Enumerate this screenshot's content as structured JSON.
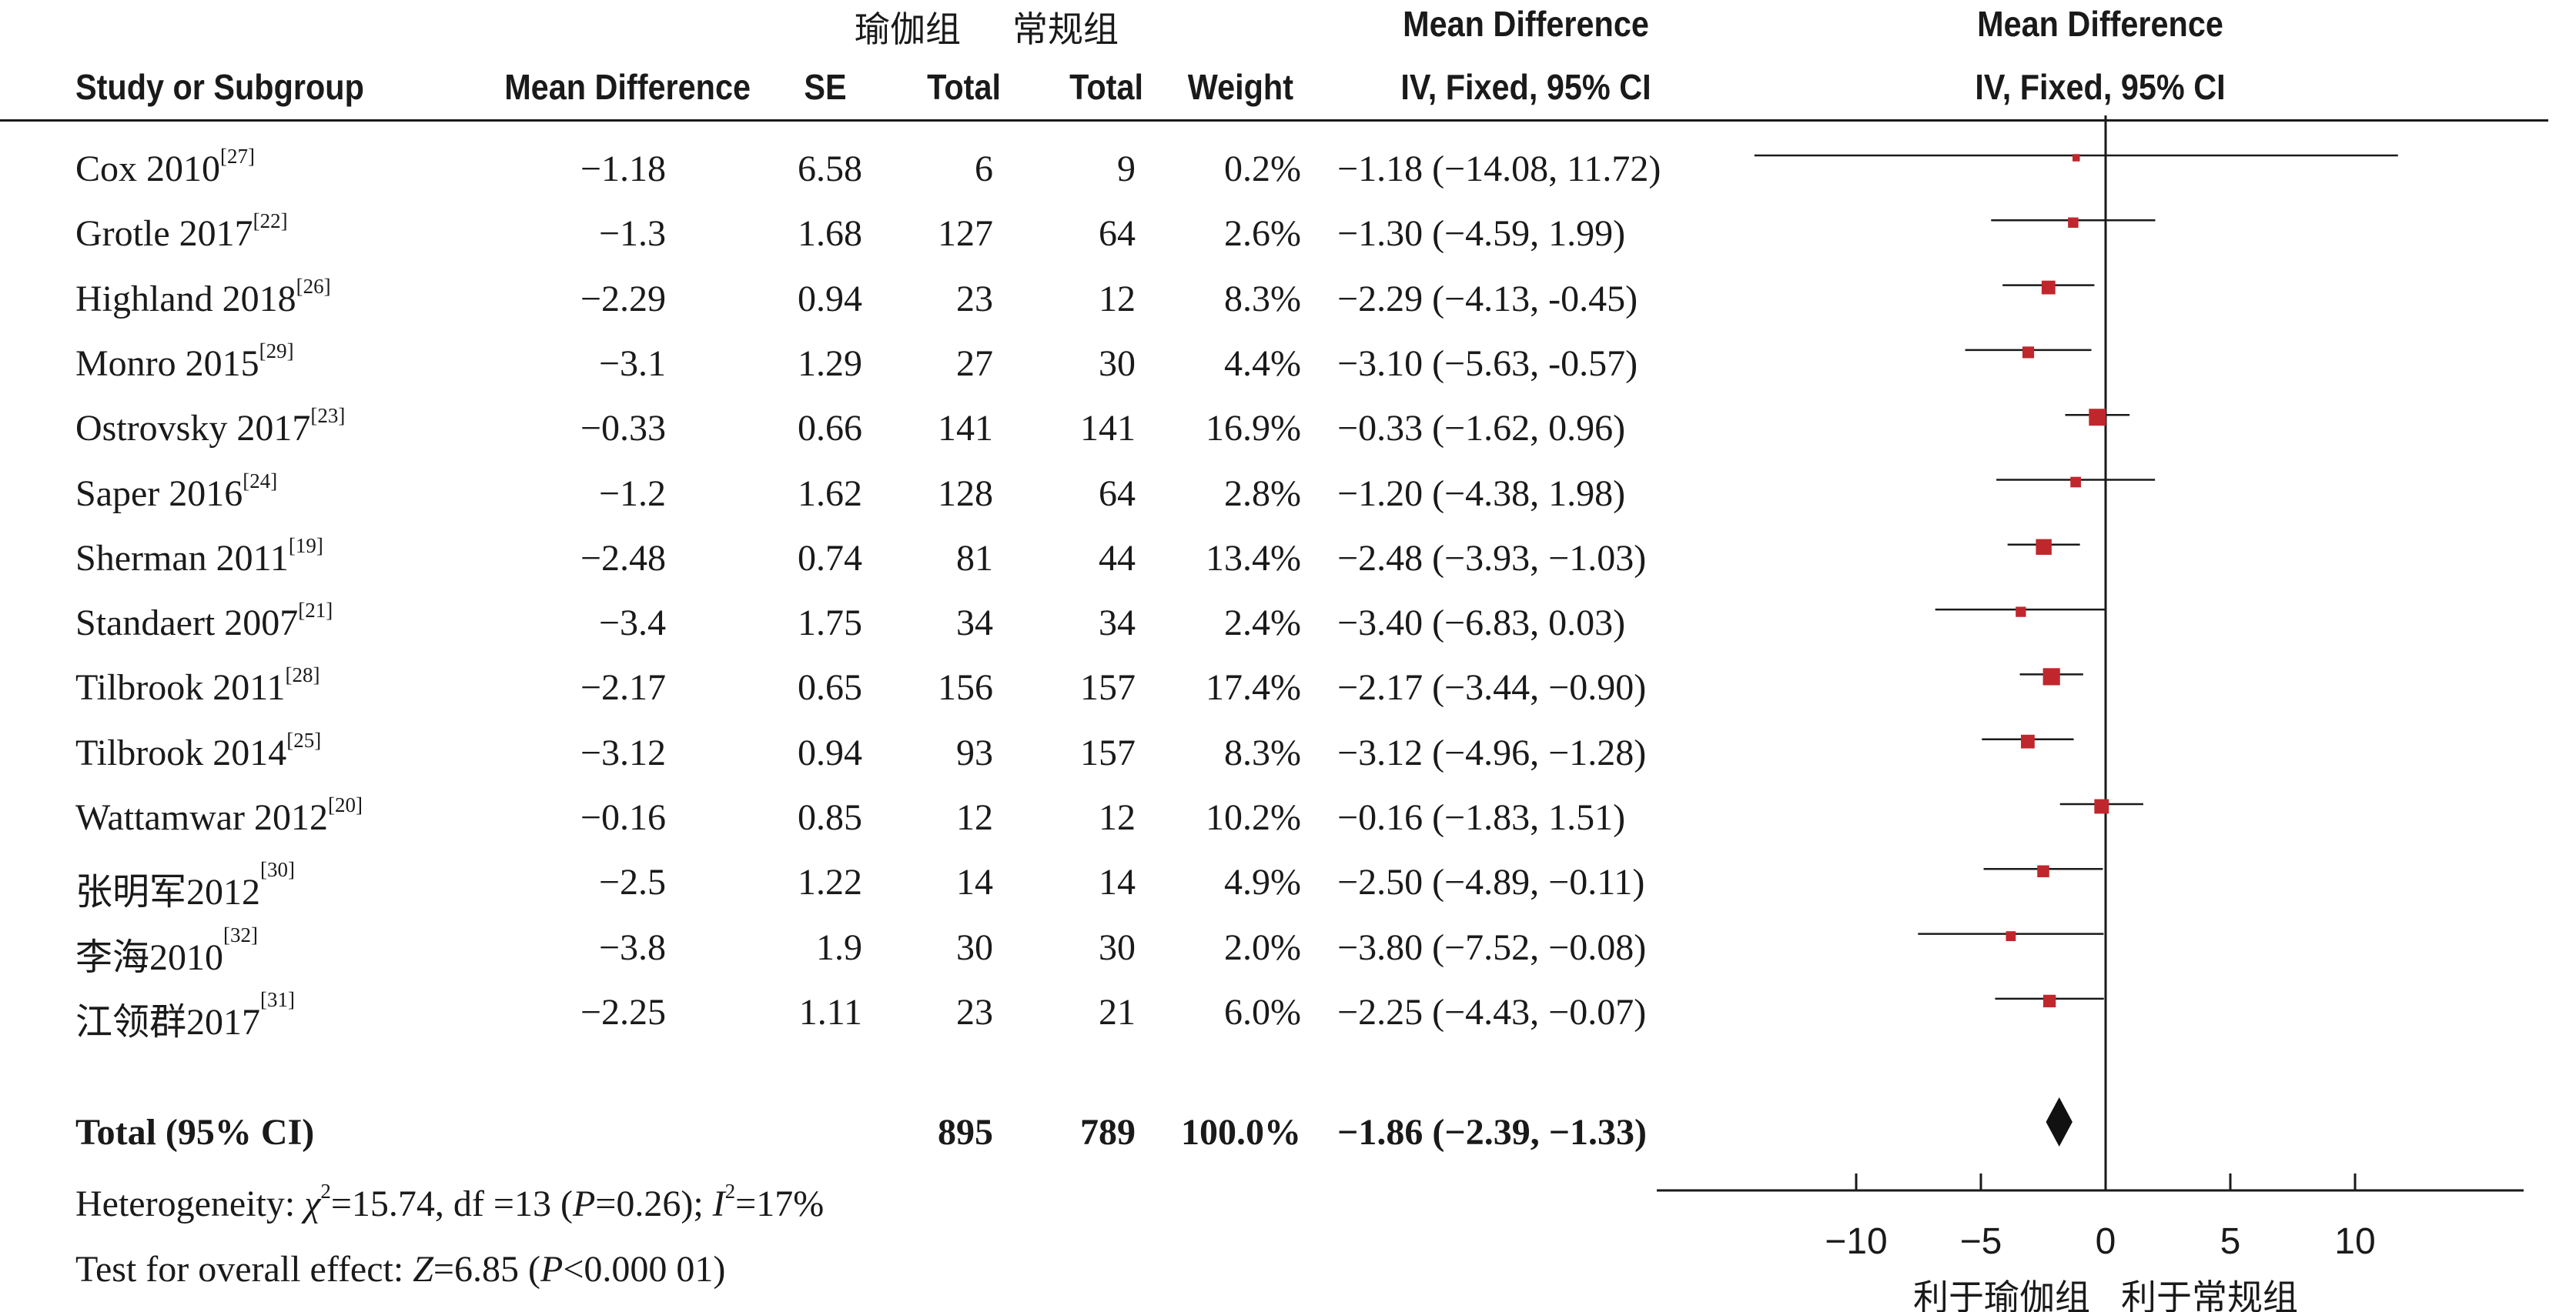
{
  "group_header": {
    "yoga": "瑜伽组",
    "conventional": "常规组"
  },
  "columns": {
    "study": "Study or Subgroup",
    "md": "Mean Difference",
    "se": "SE",
    "total1": "Total",
    "total2": "Total",
    "weight": "Weight",
    "ci_title": "Mean Difference",
    "ci_sub": "IV, Fixed, 95% CI",
    "plot_title": "Mean Difference",
    "plot_sub": "IV, Fixed, 95% CI"
  },
  "studies": [
    {
      "name": "Cox 2010",
      "ref": "[27]",
      "md": "−1.18",
      "se": "6.58",
      "n1": "6",
      "n2": "9",
      "weight": "0.2%",
      "ci": "−1.18 (−14.08, 11.72)"
    },
    {
      "name": "Grotle 2017",
      "ref": "[22]",
      "md": "−1.3",
      "se": "1.68",
      "n1": "127",
      "n2": "64",
      "weight": "2.6%",
      "ci": "−1.30 (−4.59, 1.99)"
    },
    {
      "name": "Highland 2018",
      "ref": "[26]",
      "md": "−2.29",
      "se": "0.94",
      "n1": "23",
      "n2": "12",
      "weight": "8.3%",
      "ci": "−2.29 (−4.13, -0.45)"
    },
    {
      "name": "Monro 2015",
      "ref": "[29]",
      "md": "−3.1",
      "se": "1.29",
      "n1": "27",
      "n2": "30",
      "weight": "4.4%",
      "ci": "−3.10 (−5.63, -0.57)"
    },
    {
      "name": "Ostrovsky 2017",
      "ref": "[23]",
      "md": "−0.33",
      "se": "0.66",
      "n1": "141",
      "n2": "141",
      "weight": "16.9%",
      "ci": "−0.33 (−1.62, 0.96)"
    },
    {
      "name": "Saper 2016",
      "ref": "[24]",
      "md": "−1.2",
      "se": "1.62",
      "n1": "128",
      "n2": "64",
      "weight": "2.8%",
      "ci": "−1.20 (−4.38, 1.98)"
    },
    {
      "name": "Sherman 2011",
      "ref": "[19]",
      "md": "−2.48",
      "se": "0.74",
      "n1": "81",
      "n2": "44",
      "weight": "13.4%",
      "ci": "−2.48 (−3.93, −1.03)"
    },
    {
      "name": "Standaert 2007",
      "ref": "[21]",
      "md": "−3.4",
      "se": "1.75",
      "n1": "34",
      "n2": "34",
      "weight": "2.4%",
      "ci": "−3.40 (−6.83, 0.03)"
    },
    {
      "name": "Tilbrook 2011",
      "ref": "[28]",
      "md": "−2.17",
      "se": "0.65",
      "n1": "156",
      "n2": "157",
      "weight": "17.4%",
      "ci": "−2.17 (−3.44, −0.90)"
    },
    {
      "name": "Tilbrook 2014",
      "ref": "[25]",
      "md": "−3.12",
      "se": "0.94",
      "n1": "93",
      "n2": "157",
      "weight": "8.3%",
      "ci": "−3.12 (−4.96, −1.28)"
    },
    {
      "name": "Wattamwar 2012",
      "ref": "[20]",
      "md": "−0.16",
      "se": "0.85",
      "n1": "12",
      "n2": "12",
      "weight": "10.2%",
      "ci": "−0.16 (−1.83, 1.51)"
    },
    {
      "name": "张明军2012",
      "ref": "[30]",
      "md": "−2.5",
      "se": "1.22",
      "n1": "14",
      "n2": "14",
      "weight": "4.9%",
      "ci": "−2.50 (−4.89, −0.11)"
    },
    {
      "name": "李海2010",
      "ref": "[32]",
      "md": "−3.8",
      "se": "1.9",
      "n1": "30",
      "n2": "30",
      "weight": "2.0%",
      "ci": "−3.80 (−7.52, −0.08)"
    },
    {
      "name": "江领群2017",
      "ref": "[31]",
      "md": "−2.25",
      "se": "1.11",
      "n1": "23",
      "n2": "21",
      "weight": "6.0%",
      "ci": "−2.25 (−4.43, −0.07)"
    }
  ],
  "total": {
    "label": "Total (95% CI)",
    "n1": "895",
    "n2": "789",
    "weight": "100.0%",
    "ci": "−1.86 (−2.39, −1.33)"
  },
  "footer": {
    "het_prefix": "Heterogeneity: ",
    "het_chi": "χ",
    "het_sq": "2",
    "het_mid": "=15.74, df =13 (",
    "het_p": "P",
    "het_pval": "=0.26); ",
    "het_i": "I",
    "het_isq": "2",
    "het_ival": "=17%",
    "z_prefix": "Test for overall effect: ",
    "z_var": "Z",
    "z_mid": "=6.85 (",
    "z_p": "P",
    "z_pval": "<0.000 01)"
  },
  "chart_data": {
    "type": "forest",
    "xlim": [
      -20,
      20
    ],
    "ticks": [
      "−10",
      "−5",
      "0",
      "5",
      "10"
    ],
    "tick_values": [
      -10,
      -5,
      0,
      5,
      10
    ],
    "axis_left_label": "利于瑜伽组",
    "axis_right_label": "利于常规组",
    "marker_color": "#c0272d",
    "line_color": "#1a1a1a",
    "points": [
      {
        "study": "Cox 2010",
        "md": -1.18,
        "lo": -14.08,
        "hi": 11.72,
        "weight": 0.2
      },
      {
        "study": "Grotle 2017",
        "md": -1.3,
        "lo": -4.59,
        "hi": 1.99,
        "weight": 2.6
      },
      {
        "study": "Highland 2018",
        "md": -2.29,
        "lo": -4.13,
        "hi": -0.45,
        "weight": 8.3
      },
      {
        "study": "Monro 2015",
        "md": -3.1,
        "lo": -5.63,
        "hi": -0.57,
        "weight": 4.4
      },
      {
        "study": "Ostrovsky 2017",
        "md": -0.33,
        "lo": -1.62,
        "hi": 0.96,
        "weight": 16.9
      },
      {
        "study": "Saper 2016",
        "md": -1.2,
        "lo": -4.38,
        "hi": 1.98,
        "weight": 2.8
      },
      {
        "study": "Sherman 2011",
        "md": -2.48,
        "lo": -3.93,
        "hi": -1.03,
        "weight": 13.4
      },
      {
        "study": "Standaert 2007",
        "md": -3.4,
        "lo": -6.83,
        "hi": 0.03,
        "weight": 2.4
      },
      {
        "study": "Tilbrook 2011",
        "md": -2.17,
        "lo": -3.44,
        "hi": -0.9,
        "weight": 17.4
      },
      {
        "study": "Tilbrook 2014",
        "md": -3.12,
        "lo": -4.96,
        "hi": -1.28,
        "weight": 8.3
      },
      {
        "study": "Wattamwar 2012",
        "md": -0.16,
        "lo": -1.83,
        "hi": 1.51,
        "weight": 10.2
      },
      {
        "study": "张明军2012",
        "md": -2.5,
        "lo": -4.89,
        "hi": -0.11,
        "weight": 4.9
      },
      {
        "study": "李海2010",
        "md": -3.8,
        "lo": -7.52,
        "hi": -0.08,
        "weight": 2.0
      },
      {
        "study": "江领群2017",
        "md": -2.25,
        "lo": -4.43,
        "hi": -0.07,
        "weight": 6.0
      }
    ],
    "pooled": {
      "md": -1.86,
      "lo": -2.39,
      "hi": -1.33
    }
  }
}
